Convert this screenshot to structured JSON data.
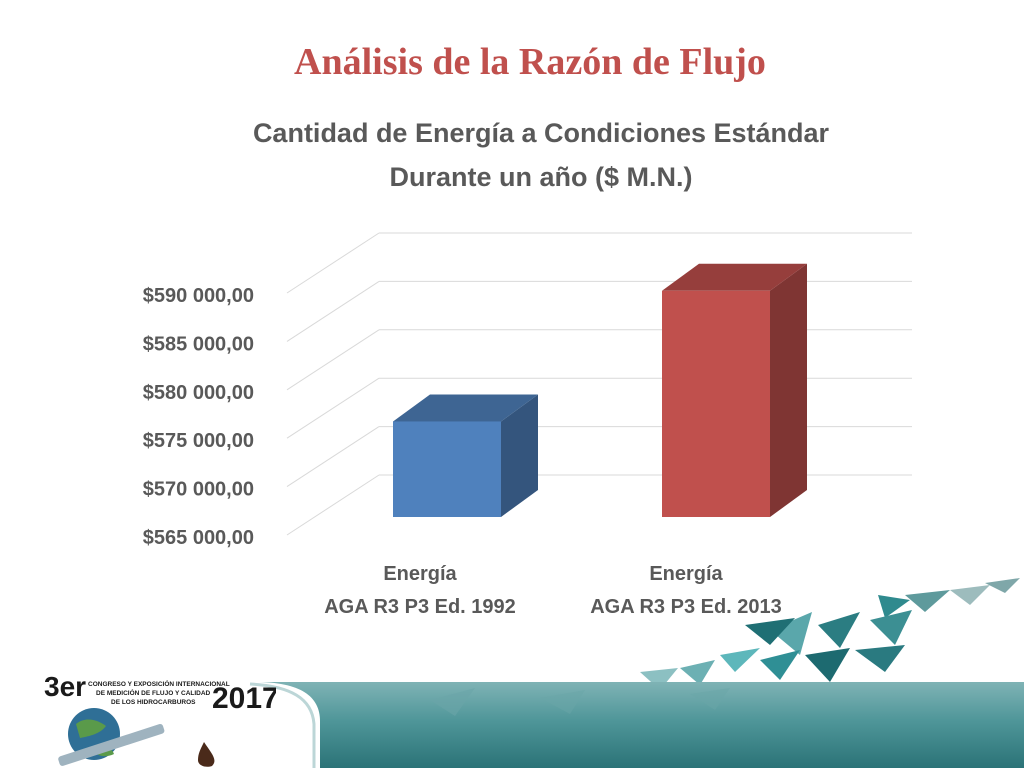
{
  "slide": {
    "title": "Análisis de la Razón de Flujo"
  },
  "chart_data": {
    "type": "bar",
    "title_lines": [
      "Cantidad de Energía a Condiciones Estándar",
      "Durante un año ($ M.N.)"
    ],
    "categories": [
      [
        "Energía",
        "AGA R3 P3 Ed. 1992"
      ],
      [
        "Energía",
        "AGA R3 P3 Ed. 2013"
      ]
    ],
    "values": [
      575800,
      589300
    ],
    "colors": [
      "#4f81bd",
      "#c0504d"
    ],
    "ylim": [
      565000,
      590000
    ],
    "yticks": [
      565000,
      570000,
      575000,
      580000,
      585000,
      590000
    ],
    "ytick_labels": [
      "$565 000,00",
      "$570 000,00",
      "$575 000,00",
      "$580 000,00",
      "$585 000,00",
      "$590 000,00"
    ],
    "grid": true,
    "style": "3d-column"
  },
  "logo": {
    "edition": "3er",
    "line1": "CONGRESO Y EXPOSICIÓN INTERNACIONAL",
    "line2": "DE MEDICIÓN DE FLUJO Y CALIDAD",
    "line3": "DE LOS HIDROCARBUROS",
    "year": "2017"
  }
}
